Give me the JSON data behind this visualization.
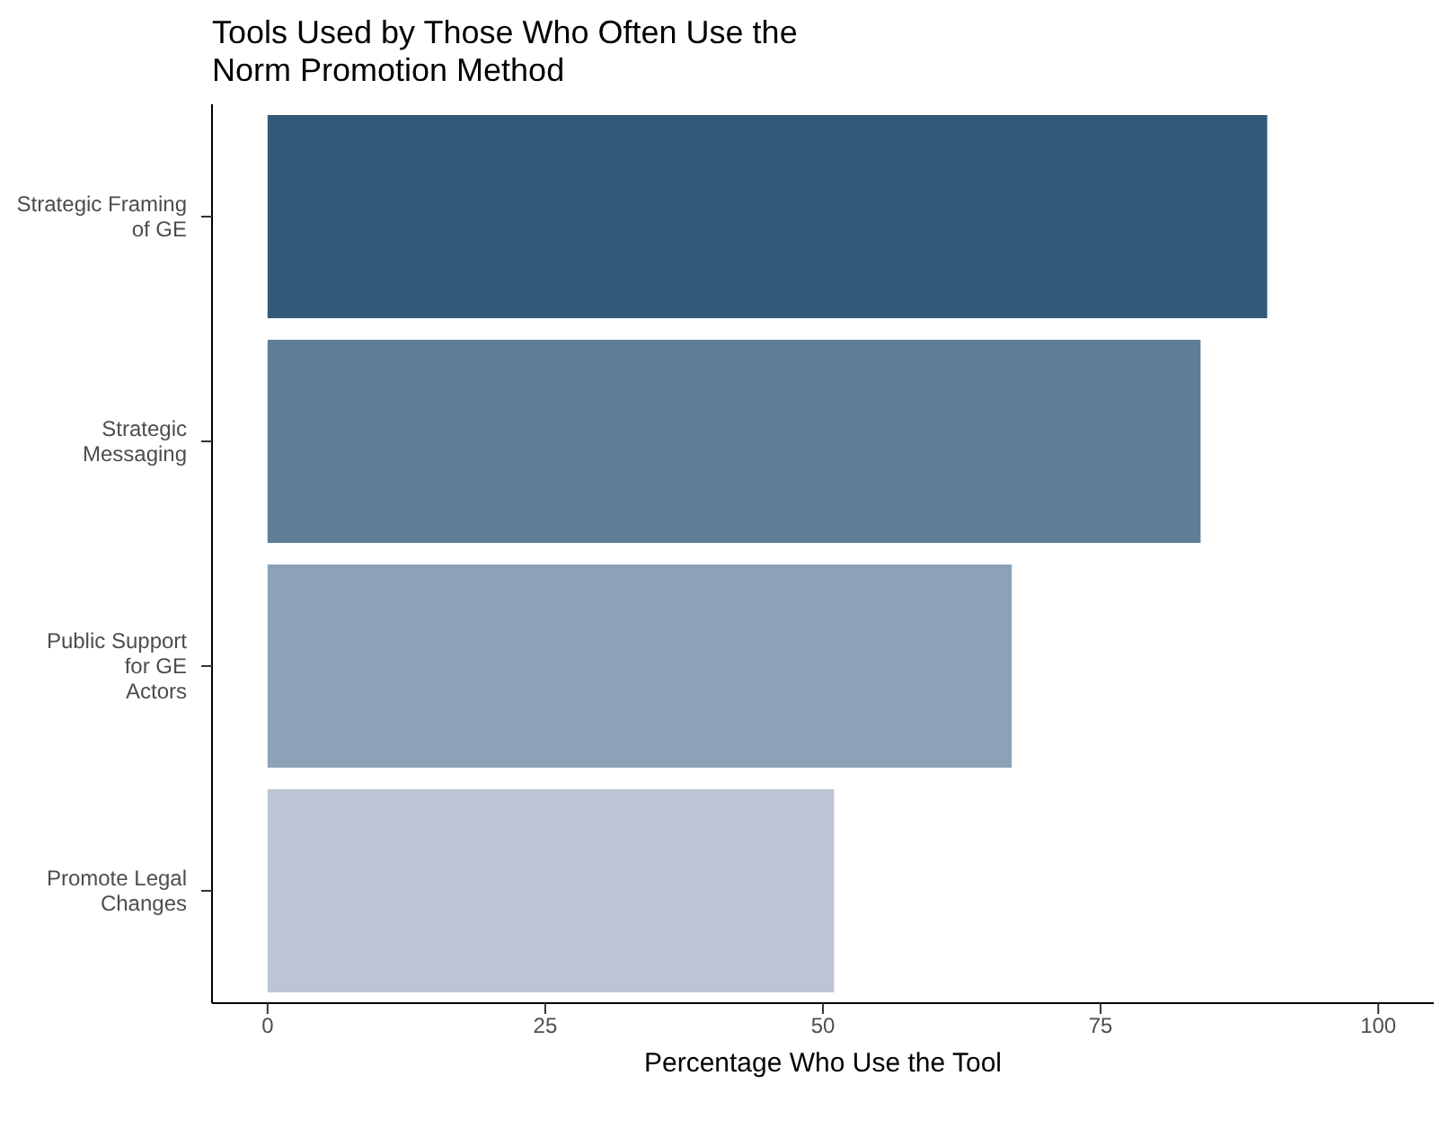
{
  "chart_data": {
    "type": "bar",
    "orientation": "horizontal",
    "title": "Tools Used by Those Who Often Use the\nNorm Promotion Method",
    "xlabel": "Percentage Who Use the Tool",
    "categories": [
      "Strategic Framing\nof GE",
      "Strategic\nMessaging",
      "Public Support\nfor GE\nActors",
      "Promote Legal\nChanges"
    ],
    "values": [
      90,
      84,
      67,
      51
    ],
    "colors": [
      "#325a78",
      "#5f7e96",
      "#8da2b6",
      "#bdc4d3"
    ],
    "xlim": [
      -5,
      105
    ],
    "xticks": [
      0,
      25,
      50,
      75,
      100
    ],
    "grid": false,
    "legend": false
  }
}
